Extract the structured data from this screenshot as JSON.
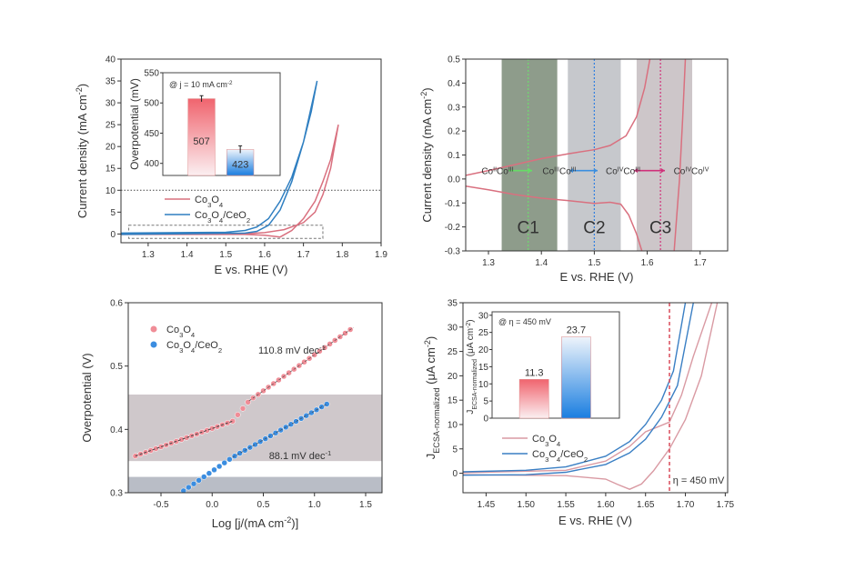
{
  "chart_data": [
    {
      "type": "line",
      "xlabel": "E vs. RHE (V)",
      "ylabel": "Current density (mA cm^{-2})",
      "xlim": [
        1.23,
        1.9
      ],
      "ylim": [
        -2,
        40
      ],
      "xticks": [
        1.3,
        1.4,
        1.5,
        1.6,
        1.7,
        1.8,
        1.9
      ],
      "xtick_labels": [
        "1.3",
        "1.4",
        "1.5",
        "1.6",
        "1.7",
        "1.8",
        "1.9"
      ],
      "yticks": [
        0,
        5,
        10,
        15,
        20,
        25,
        30,
        35,
        40
      ],
      "ytick_labels": [
        "0",
        "5",
        "10",
        "15",
        "20",
        "25",
        "30",
        "35",
        "40"
      ],
      "reference_line": {
        "y": 10,
        "style": "dotted"
      },
      "highlight_box": {
        "x": [
          1.25,
          1.75
        ],
        "y": [
          -1,
          2
        ],
        "style": "dashed"
      },
      "legend": "center-left",
      "series": [
        {
          "name": "Co_{3}O_{4}",
          "color": "#d9707f",
          "x": [
            1.23,
            1.5,
            1.55,
            1.6,
            1.65,
            1.7,
            1.73,
            1.75,
            1.77,
            1.79,
            1.77,
            1.75,
            1.73,
            1.7,
            1.67,
            1.64,
            1.6,
            1.55,
            1.23
          ],
          "y": [
            0,
            0,
            0.05,
            0.3,
            1,
            2.6,
            5,
            9,
            15,
            25,
            17,
            12,
            7.5,
            3.5,
            0.8,
            -0.7,
            -0.3,
            -0.1,
            -0.1
          ]
        },
        {
          "name": "Co_{3}O_{4}/CeO_{2}",
          "color": "#2f7fc1",
          "x": [
            1.23,
            1.5,
            1.55,
            1.58,
            1.61,
            1.64,
            1.67,
            1.7,
            1.735,
            1.72,
            1.7,
            1.67,
            1.64,
            1.61,
            1.58,
            1.55,
            1.23
          ],
          "y": [
            0.2,
            0.4,
            0.8,
            1.6,
            3.5,
            7.5,
            13,
            21,
            35,
            28,
            21,
            12,
            5.5,
            2,
            0.6,
            0.2,
            -0.1
          ]
        }
      ],
      "inset": {
        "type": "bar",
        "title": "@ j = 10 mA cm^{-2}",
        "ylabel": "Overpotential (mV)",
        "ylim": [
          380,
          550
        ],
        "yticks": [
          400,
          450,
          500,
          550
        ],
        "ytick_labels": [
          "400",
          "450",
          "500",
          "550"
        ],
        "categories": [
          "Co_{3}O_{4}",
          "Co_{3}O_{4}/CeO_{2}"
        ],
        "values": [
          507,
          423
        ],
        "value_labels": [
          "507",
          "423"
        ],
        "errors": [
          5,
          6
        ],
        "colors": [
          "#f0646e",
          "#1a7ee0"
        ]
      }
    },
    {
      "type": "line",
      "xlabel": "E vs. RHE (V)",
      "ylabel": "Current density (mA cm^{-2})",
      "xlim": [
        1.257,
        1.752
      ],
      "ylim": [
        -0.3,
        0.5
      ],
      "xticks": [
        1.3,
        1.4,
        1.5,
        1.6,
        1.7
      ],
      "xtick_labels": [
        "1.3",
        "1.4",
        "1.5",
        "1.6",
        "1.7"
      ],
      "yticks": [
        -0.3,
        -0.2,
        -0.1,
        0.0,
        0.1,
        0.2,
        0.3,
        0.4,
        0.5
      ],
      "ytick_labels": [
        "-0.3",
        "-0.2",
        "-0.1",
        "0.0",
        "0.1",
        "0.2",
        "0.3",
        "0.4",
        "0.5"
      ],
      "regions": [
        {
          "label": "C1",
          "x": [
            1.325,
            1.43
          ],
          "color": "#8e9c8b",
          "marker_x": 1.375,
          "marker_color": "#6fdc6f"
        },
        {
          "label": "C2",
          "x": [
            1.45,
            1.55
          ],
          "color": "#c6c8cc",
          "marker_x": 1.5,
          "marker_color": "#2f7fe0"
        },
        {
          "label": "C3",
          "x": [
            1.58,
            1.685
          ],
          "color": "#cdc6c9",
          "marker_x": 1.625,
          "marker_color": "#d0307a"
        }
      ],
      "annotations": [
        "Co^{II}Co^{III}",
        "Co^{III}Co^{III}",
        "Co^{IV}Co^{III}",
        "Co^{IV}Co^{IV}"
      ],
      "arrow_colors": [
        "#66dd66",
        "#3a8fe0",
        "#d0307a"
      ],
      "series": [
        {
          "color": "#d9707f",
          "x": [
            1.257,
            1.3,
            1.35,
            1.4,
            1.45,
            1.5,
            1.53,
            1.56,
            1.58,
            1.595,
            1.605
          ],
          "y": [
            0.015,
            0.035,
            0.06,
            0.085,
            0.105,
            0.122,
            0.14,
            0.18,
            0.26,
            0.38,
            0.5
          ]
        },
        {
          "color": "#d9707f",
          "x": [
            1.257,
            1.3,
            1.35,
            1.4,
            1.45,
            1.5,
            1.53,
            1.55,
            1.565,
            1.58,
            1.59
          ],
          "y": [
            -0.03,
            -0.045,
            -0.065,
            -0.08,
            -0.09,
            -0.102,
            -0.097,
            -0.105,
            -0.15,
            -0.23,
            -0.3
          ]
        },
        {
          "color": "#d9707f",
          "x": [
            1.651,
            1.656,
            1.661,
            1.667,
            1.672
          ],
          "y": [
            -0.3,
            -0.15,
            0.0,
            0.25,
            0.5
          ]
        }
      ]
    },
    {
      "type": "scatter",
      "xlabel": "Log [j/(mA cm^{-2})]",
      "ylabel": "Overpotential (V)",
      "xlim": [
        -0.82,
        1.66
      ],
      "ylim": [
        0.3,
        0.6
      ],
      "xticks": [
        -0.5,
        0.0,
        0.5,
        1.0,
        1.5
      ],
      "xtick_labels": [
        "-0.5",
        "0.0",
        "0.5",
        "1.0",
        "1.5"
      ],
      "yticks": [
        0.3,
        0.4,
        0.5,
        0.6
      ],
      "ytick_labels": [
        "0.3",
        "0.4",
        "0.5",
        "0.6"
      ],
      "bands": [
        {
          "y": [
            0.35,
            0.455
          ],
          "color": "#cfc8cb"
        },
        {
          "y": [
            0.3,
            0.325
          ],
          "color": "#b9bdc6"
        }
      ],
      "legend": "top-left",
      "series": [
        {
          "name": "Co_{3}O_{4}",
          "color": "#f08d97",
          "x_range": [
            -0.75,
            1.38
          ],
          "segments": [
            [
              -0.75,
              0.358,
              0.2,
              0.413
            ],
            [
              0.2,
              0.413,
              0.36,
              0.445
            ],
            [
              0.36,
              0.445,
              1.38,
              0.561
            ]
          ],
          "tafel_slope": "110.8 mV dec^{-1}"
        },
        {
          "name": "Co_{3}O_{4}/CeO_{2}",
          "color": "#3b8de0",
          "x_range": [
            -0.28,
            1.12
          ],
          "segments": [
            [
              -0.28,
              0.303,
              0.2,
              0.356
            ],
            [
              0.2,
              0.356,
              1.12,
              0.44
            ]
          ],
          "tafel_slope": "88.1 mV dec^{-1}"
        }
      ]
    },
    {
      "type": "line",
      "xlabel": "E vs. RHE (V)",
      "ylabel": "J_{ECSA-normalized} (μA cm^{-2})",
      "xlim": [
        1.421,
        1.753
      ],
      "ylim": [
        -4,
        35
      ],
      "xticks": [
        1.45,
        1.5,
        1.55,
        1.6,
        1.65,
        1.7,
        1.75
      ],
      "xtick_labels": [
        "1.45",
        "1.50",
        "1.55",
        "1.60",
        "1.65",
        "1.70",
        "1.75"
      ],
      "yticks": [
        0,
        5,
        10,
        15,
        20,
        25,
        30,
        35
      ],
      "ytick_labels": [
        "0",
        "5",
        "10",
        "15",
        "20",
        "25",
        "30",
        "35"
      ],
      "reference_line": {
        "x": 1.68,
        "style": "dashed",
        "color": "#d94a5a",
        "label": "η = 450 mV"
      },
      "legend": "center-left",
      "series": [
        {
          "name": "Co_{3}O_{4}",
          "color": "#d99aa3",
          "x": [
            1.421,
            1.55,
            1.6,
            1.615,
            1.63,
            1.645,
            1.66,
            1.68,
            1.7,
            1.72,
            1.74
          ],
          "y": [
            -0.3,
            -0.5,
            -1.2,
            -2.3,
            -3.3,
            -2.2,
            0.5,
            5,
            11,
            20,
            35
          ],
          "branch2_x": [
            1.421,
            1.55,
            1.6,
            1.63,
            1.65,
            1.665,
            1.68,
            1.695,
            1.71,
            1.733
          ],
          "branch2_y": [
            0.1,
            0.6,
            2.5,
            5.5,
            8.5,
            9.5,
            10.5,
            16,
            24,
            35
          ]
        },
        {
          "name": "Co_{3}O_{4}/CeO_{2}",
          "color": "#3a7fc4",
          "x": [
            1.421,
            1.5,
            1.55,
            1.6,
            1.63,
            1.65,
            1.67,
            1.685,
            1.7
          ],
          "y": [
            0.3,
            0.6,
            1.3,
            3.5,
            6.5,
            10,
            15,
            21,
            35
          ],
          "branch2_x": [
            1.421,
            1.5,
            1.55,
            1.6,
            1.63,
            1.65,
            1.67,
            1.69,
            1.71
          ],
          "branch2_y": [
            -0.4,
            -0.3,
            0.2,
            1.8,
            4.2,
            7,
            11.5,
            18,
            35
          ]
        }
      ],
      "inset": {
        "type": "bar",
        "title": "@ η = 450 mV",
        "ylabel": "J_{ECSA-normalized} (μA cm^{-2})",
        "ylim": [
          0,
          31
        ],
        "yticks": [
          0,
          5,
          10,
          15,
          20,
          25,
          30
        ],
        "ytick_labels": [
          "0",
          "5",
          "10",
          "15",
          "20",
          "25",
          "30"
        ],
        "categories": [
          "Co_{3}O_{4}",
          "Co_{3}O_{4}/CeO_{2}"
        ],
        "values": [
          11.3,
          23.7
        ],
        "value_labels": [
          "11.3",
          "23.7"
        ],
        "colors": [
          "#f0646e",
          "#1a7ee0"
        ]
      }
    }
  ]
}
